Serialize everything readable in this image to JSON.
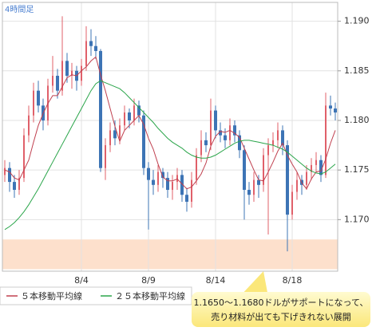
{
  "chart_data": {
    "type": "candlestick",
    "period_label": "4時間足",
    "categories": [
      null,
      null,
      null,
      null,
      null,
      null,
      null,
      null,
      null,
      null,
      null,
      null,
      null,
      null,
      null,
      null,
      "8/4",
      null,
      null,
      null,
      null,
      null,
      null,
      null,
      null,
      null,
      null,
      null,
      null,
      null,
      "8/9",
      null,
      null,
      null,
      null,
      null,
      null,
      null,
      null,
      null,
      null,
      null,
      null,
      null,
      "8/14",
      null,
      null,
      null,
      null,
      null,
      null,
      null,
      null,
      null,
      null,
      null,
      null,
      null,
      null,
      null,
      "8/18",
      null,
      null,
      null,
      null,
      null,
      null,
      null,
      null,
      null
    ],
    "open": [
      1.1745,
      1.1752,
      1.1738,
      1.173,
      1.1742,
      1.1785,
      1.1805,
      1.183,
      1.1815,
      1.18,
      1.1835,
      1.1845,
      1.183,
      1.186,
      1.1845,
      1.185,
      1.184,
      1.1855,
      1.188,
      1.1875,
      1.187,
      1.1752,
      1.1775,
      1.179,
      1.1782,
      1.1795,
      1.1808,
      1.18,
      1.1815,
      1.1805,
      1.1752,
      1.174,
      1.1735,
      1.1748,
      1.1742,
      1.173,
      1.1738,
      1.1745,
      1.1725,
      1.1718,
      1.174,
      1.1765,
      1.178,
      1.1775,
      1.181,
      1.179,
      1.1785,
      1.178,
      1.1795,
      1.1785,
      1.177,
      1.173,
      1.1725,
      1.174,
      1.1735,
      1.1765,
      1.1775,
      1.178,
      1.179,
      1.1775,
      1.1705,
      1.1728,
      1.174,
      1.1735,
      1.1748,
      1.1755,
      1.176,
      1.1745,
      1.1815,
      1.1812
    ],
    "high": [
      1.176,
      1.1758,
      1.1745,
      1.175,
      1.1792,
      1.1815,
      1.1838,
      1.184,
      1.1822,
      1.1842,
      1.1865,
      1.1852,
      1.1905,
      1.1868,
      1.1858,
      1.1855,
      1.1862,
      1.1895,
      1.1892,
      1.1885,
      1.1872,
      1.1782,
      1.1798,
      1.18,
      1.1802,
      1.1815,
      1.1812,
      1.1822,
      1.182,
      1.181,
      1.1758,
      1.175,
      1.1755,
      1.1752,
      1.1748,
      1.1745,
      1.1752,
      1.175,
      1.1732,
      1.1748,
      1.1772,
      1.179,
      1.1788,
      1.1822,
      1.1815,
      1.1798,
      1.1792,
      1.1802,
      1.18,
      1.179,
      1.1775,
      1.1738,
      1.1748,
      1.1745,
      1.1772,
      1.1782,
      1.1788,
      1.1798,
      1.1795,
      1.178,
      1.1735,
      1.1748,
      1.1745,
      1.1755,
      1.1762,
      1.1768,
      1.1765,
      1.1828,
      1.1825,
      1.1818
    ],
    "low": [
      1.1738,
      1.1728,
      1.1722,
      1.1725,
      1.1738,
      1.1778,
      1.1798,
      1.1808,
      1.179,
      1.1795,
      1.1828,
      1.1822,
      1.1825,
      1.1838,
      1.1832,
      1.183,
      1.1835,
      1.185,
      1.1865,
      1.1862,
      1.1748,
      1.174,
      1.1768,
      1.1775,
      1.1776,
      1.179,
      1.1792,
      1.1795,
      1.1798,
      1.1745,
      1.169,
      1.1725,
      1.1728,
      1.1732,
      1.1722,
      1.172,
      1.173,
      1.1718,
      1.1708,
      1.1712,
      1.1735,
      1.1758,
      1.1768,
      1.177,
      1.1782,
      1.1778,
      1.1772,
      1.1775,
      1.1778,
      1.1762,
      1.17,
      1.1715,
      1.1718,
      1.1722,
      1.1728,
      1.1685,
      1.1768,
      1.1772,
      1.1765,
      1.1668,
      1.17,
      1.172,
      1.1725,
      1.173,
      1.174,
      1.1748,
      1.1738,
      1.1742,
      1.1805,
      1.18
    ],
    "close": [
      1.1752,
      1.1738,
      1.173,
      1.1742,
      1.1785,
      1.1805,
      1.183,
      1.1815,
      1.18,
      1.1835,
      1.1845,
      1.183,
      1.186,
      1.1845,
      1.185,
      1.184,
      1.1855,
      1.188,
      1.1875,
      1.187,
      1.1752,
      1.1775,
      1.179,
      1.1782,
      1.1795,
      1.1808,
      1.18,
      1.1815,
      1.1805,
      1.1752,
      1.174,
      1.1735,
      1.1748,
      1.1742,
      1.173,
      1.1738,
      1.1745,
      1.1725,
      1.1718,
      1.174,
      1.1765,
      1.178,
      1.1775,
      1.181,
      1.179,
      1.1785,
      1.178,
      1.1795,
      1.1785,
      1.177,
      1.173,
      1.1725,
      1.174,
      1.1735,
      1.1765,
      1.1775,
      1.178,
      1.179,
      1.1775,
      1.1705,
      1.1728,
      1.174,
      1.1735,
      1.1748,
      1.1755,
      1.176,
      1.1745,
      1.1815,
      1.1812,
      1.1808
    ],
    "up_color": "#e0606a",
    "down_color": "#3d74b5",
    "lines": [
      {
        "name": "５本移動平均線",
        "color": "#c0404f",
        "values": [
          1.175,
          1.1748,
          1.1742,
          1.174,
          1.175,
          1.176,
          1.1778,
          1.1795,
          1.1807,
          1.1817,
          1.1825,
          1.1825,
          1.1834,
          1.1843,
          1.1846,
          1.1845,
          1.185,
          1.1854,
          1.186,
          1.1864,
          1.1846,
          1.183,
          1.1812,
          1.1794,
          1.1779,
          1.179,
          1.1795,
          1.18,
          1.1805,
          1.1796,
          1.1782,
          1.1771,
          1.1756,
          1.1743,
          1.1739,
          1.1739,
          1.1741,
          1.1736,
          1.1731,
          1.1733,
          1.1739,
          1.1746,
          1.1757,
          1.1774,
          1.1784,
          1.1789,
          1.1788,
          1.179,
          1.1787,
          1.1783,
          1.1772,
          1.1761,
          1.175,
          1.174,
          1.1739,
          1.1748,
          1.1758,
          1.1769,
          1.1777,
          1.1765,
          1.1756,
          1.1748,
          1.1737,
          1.1731,
          1.1741,
          1.1748,
          1.1749,
          1.1761,
          1.1777,
          1.179
        ]
      },
      {
        "name": "２５本移動平均線",
        "color": "#2aa54a",
        "values": [
          1.169,
          1.1693,
          1.1697,
          1.1702,
          1.1708,
          1.1715,
          1.1723,
          1.1731,
          1.174,
          1.1749,
          1.1758,
          1.1767,
          1.1776,
          1.1785,
          1.1794,
          1.1803,
          1.1812,
          1.1821,
          1.183,
          1.1837,
          1.184,
          1.1838,
          1.1836,
          1.1834,
          1.1832,
          1.1828,
          1.1823,
          1.1818,
          1.1813,
          1.1808,
          1.1803,
          1.1798,
          1.1792,
          1.1787,
          1.1782,
          1.1778,
          1.1775,
          1.1772,
          1.1768,
          1.1765,
          1.1763,
          1.1762,
          1.1762,
          1.1763,
          1.1765,
          1.1768,
          1.1771,
          1.1774,
          1.1777,
          1.1779,
          1.178,
          1.178,
          1.1779,
          1.1778,
          1.1777,
          1.1776,
          1.1775,
          1.1773,
          1.1771,
          1.1768,
          1.1764,
          1.176,
          1.1756,
          1.1752,
          1.1749,
          1.1747,
          1.1746,
          1.1748,
          1.1752,
          1.1756
        ]
      }
    ],
    "support_band": [
      1.165,
      1.168
    ],
    "band_color": "#fde0cc",
    "ylim": [
      1.1648,
      1.1919
    ],
    "yticks": [
      {
        "value": 1.17,
        "label": "1.170"
      },
      1.175,
      {
        "value": 1.18,
        "label": "1.180"
      },
      1.185,
      {
        "value": 1.19,
        "label": "1.190"
      }
    ],
    "grid": true,
    "annotation": [
      "1.1650～1.1680ドルがサポートになって、",
      "売り材料が出ても下げきれない展開"
    ]
  }
}
